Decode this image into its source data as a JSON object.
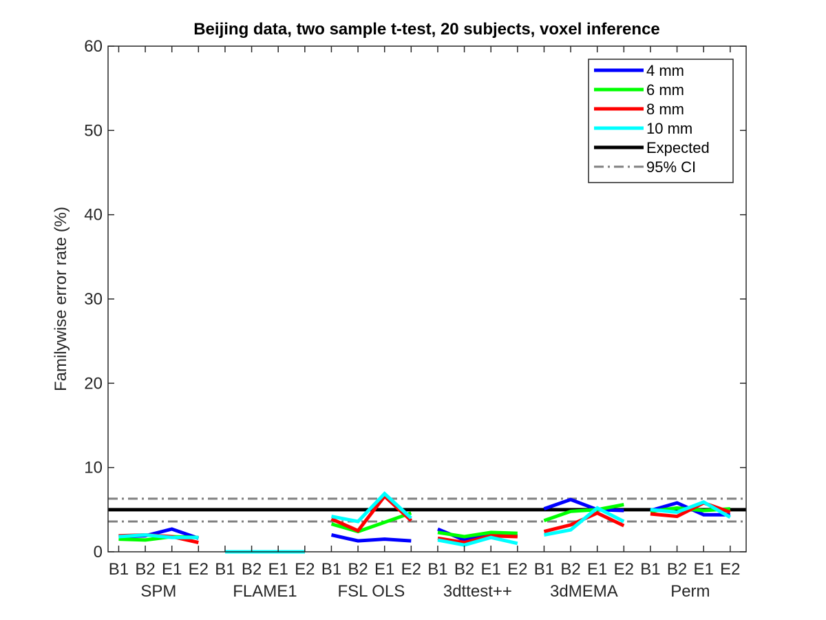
{
  "chart_data": {
    "type": "line",
    "title": "Beijing data, two sample t-test, 20 subjects, voxel inference",
    "ylabel": "Familywise error rate (%)",
    "xlabel": "",
    "ylim": [
      0,
      60
    ],
    "yticks": [
      0,
      10,
      20,
      30,
      40,
      50,
      60
    ],
    "xlim": [
      0.6,
      24.6
    ],
    "categories": [
      "B1",
      "B2",
      "E1",
      "E2",
      "B1",
      "B2",
      "E1",
      "E2",
      "B1",
      "B2",
      "E1",
      "E2",
      "B1",
      "B2",
      "E1",
      "E2",
      "B1",
      "B2",
      "E1",
      "E2",
      "B1",
      "B2",
      "E1",
      "E2"
    ],
    "groups": [
      "SPM",
      "FLAME1",
      "FSL OLS",
      "3dttest++",
      "3dMEMA",
      "Perm"
    ],
    "series": [
      {
        "name": "4 mm",
        "color": "#0000ff",
        "values": [
          [
            1.8,
            1.9,
            2.7,
            1.6
          ],
          [
            0,
            0,
            0,
            0
          ],
          [
            2.0,
            1.3,
            1.5,
            1.3
          ],
          [
            2.7,
            1.4,
            2.0,
            1.9
          ],
          [
            5.1,
            6.2,
            5.0,
            4.9
          ],
          [
            4.9,
            5.8,
            4.4,
            4.4
          ]
        ]
      },
      {
        "name": "6 mm",
        "color": "#00ff00",
        "values": [
          [
            1.5,
            1.4,
            1.8,
            1.7
          ],
          [
            0,
            0,
            0,
            0
          ],
          [
            3.3,
            2.4,
            3.5,
            4.6
          ],
          [
            2.3,
            1.8,
            2.3,
            2.2
          ],
          [
            3.7,
            4.8,
            5.0,
            5.6
          ],
          [
            4.8,
            5.2,
            4.9,
            5.1
          ]
        ]
      },
      {
        "name": "8 mm",
        "color": "#ff0000",
        "values": [
          [
            1.9,
            2.0,
            1.8,
            1.1
          ],
          [
            0,
            0,
            0,
            0
          ],
          [
            3.9,
            2.5,
            6.6,
            3.7
          ],
          [
            1.6,
            1.1,
            1.9,
            1.8
          ],
          [
            2.4,
            3.2,
            4.6,
            3.1
          ],
          [
            4.5,
            4.2,
            5.8,
            4.7
          ]
        ]
      },
      {
        "name": "10 mm",
        "color": "#00ffff",
        "values": [
          [
            1.8,
            2.0,
            1.7,
            1.7
          ],
          [
            0,
            0,
            0,
            0
          ],
          [
            4.2,
            3.6,
            6.9,
            4.0
          ],
          [
            1.4,
            0.8,
            1.7,
            1.0
          ],
          [
            2.0,
            2.6,
            5.2,
            3.6
          ],
          [
            5.0,
            4.7,
            5.9,
            4.1
          ]
        ]
      }
    ],
    "expected": {
      "name": "Expected",
      "value": 5,
      "color": "#000000"
    },
    "ci": {
      "name": "95% CI",
      "lower": 3.6,
      "upper": 6.3,
      "color": "#808080"
    },
    "legend_position": "top-right",
    "grid": false
  }
}
